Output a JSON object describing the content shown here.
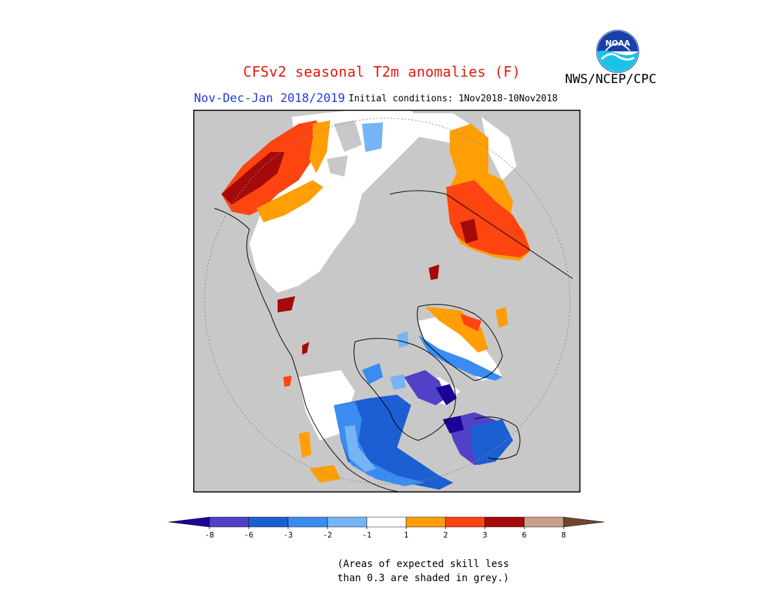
{
  "header": {
    "title": "CFSv2 seasonal T2m anomalies (F)",
    "agency": "NWS/NCEP/CPC",
    "period": "Nov-Dec-Jan 2018/2019",
    "initial_conditions": "Initial conditions: 1Nov2018-10Nov2018",
    "logo_text": "NOAA"
  },
  "colors": {
    "title": "#e8170e",
    "period": "#1f3ee0",
    "low_skill_grey": "#c8c8c8"
  },
  "legend": {
    "ticks": [
      "-8",
      "-6",
      "-3",
      "-2",
      "-1",
      "1",
      "2",
      "3",
      "6",
      "8"
    ],
    "bins": [
      {
        "color": "#1c0396"
      },
      {
        "color": "#5041c8"
      },
      {
        "color": "#1c5fd2"
      },
      {
        "color": "#3a8cf0"
      },
      {
        "color": "#75b4f5"
      },
      {
        "color": "#ffffff"
      },
      {
        "color": "#ff9f05"
      },
      {
        "color": "#fd4411"
      },
      {
        "color": "#a50a0a"
      },
      {
        "color": "#c8a08c"
      },
      {
        "color": "#6e4630"
      }
    ]
  },
  "note": {
    "line1": "(Areas of expected skill less",
    "line2": "than 0.3 are shaded in grey.)"
  }
}
